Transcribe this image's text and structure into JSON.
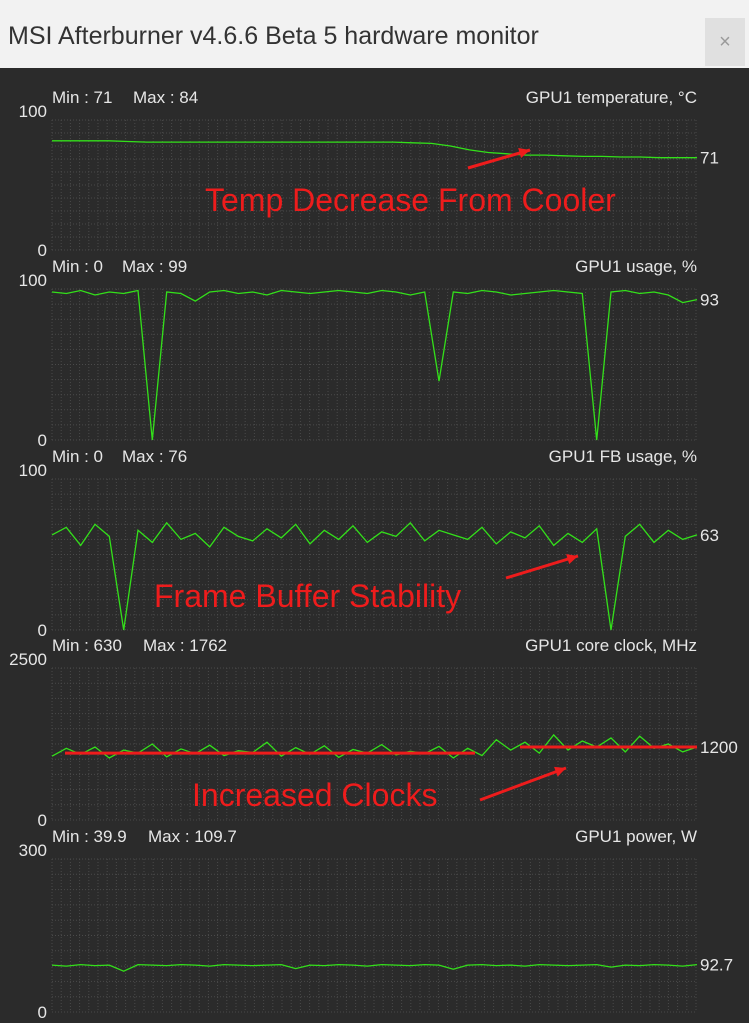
{
  "window": {
    "title": "MSI Afterburner v4.6.6 Beta 5 hardware monitor",
    "close_glyph": "×"
  },
  "colors": {
    "background": "#2b2b2b",
    "grid": "#4a4a4a",
    "trace": "#33e01a",
    "annotation": "#ee1c1c",
    "text": "#e6e6e6"
  },
  "graphs": [
    {
      "id": "temp",
      "title": "GPU1 temperature, °C",
      "min_label": "Min : 71",
      "max_label": "Max : 84",
      "y_top": "100",
      "y_bottom": "0",
      "ymax": 100,
      "current": "71",
      "trace": [
        84,
        84,
        84,
        84,
        83.5,
        83,
        83,
        83,
        83,
        83,
        83,
        83,
        83,
        83,
        83,
        83,
        83,
        83,
        83,
        82.5,
        82,
        80,
        77,
        75,
        74,
        73,
        73,
        72.5,
        72,
        72,
        71.5,
        71.5,
        71,
        71,
        71
      ]
    },
    {
      "id": "usage",
      "title": "GPU1 usage, %",
      "min_label": "Min : 0",
      "max_label": "Max : 99",
      "y_top": "100",
      "y_bottom": "0",
      "ymax": 100,
      "current": "93",
      "trace": [
        98,
        97,
        99,
        96,
        98,
        97,
        99,
        0,
        98,
        97,
        92,
        98,
        99,
        97,
        98,
        96,
        99,
        98,
        97,
        98,
        99,
        98,
        97,
        99,
        98,
        96,
        98,
        39,
        98,
        97,
        99,
        98,
        96,
        97,
        98,
        99,
        98,
        97,
        0,
        98,
        99,
        97,
        98,
        96,
        91,
        93
      ]
    },
    {
      "id": "fb",
      "title": "GPU1 FB usage, %",
      "min_label": "Min : 0",
      "max_label": "Max : 76",
      "y_top": "100",
      "y_bottom": "0",
      "ymax": 100,
      "current": "63",
      "trace": [
        63,
        68,
        56,
        70,
        62,
        0,
        66,
        58,
        71,
        60,
        64,
        55,
        68,
        62,
        59,
        67,
        61,
        70,
        57,
        66,
        60,
        69,
        58,
        65,
        62,
        71,
        59,
        66,
        63,
        60,
        68,
        57,
        65,
        61,
        69,
        56,
        64,
        58,
        67,
        0,
        62,
        70,
        58,
        66,
        60,
        63
      ]
    },
    {
      "id": "clock",
      "title": "GPU1 core clock, MHz",
      "min_label": "Min : 630",
      "max_label": "Max : 1762",
      "y_top": "2500",
      "y_bottom": "0",
      "ymax": 2500,
      "current": "1200",
      "trace": [
        1050,
        1180,
        1080,
        1200,
        1020,
        1150,
        1100,
        1250,
        1040,
        1170,
        1090,
        1230,
        1060,
        1140,
        1110,
        1280,
        1050,
        1190,
        1080,
        1220,
        1030,
        1160,
        1100,
        1240,
        1070,
        1130,
        1090,
        1210,
        1020,
        1180,
        1060,
        1320,
        1150,
        1280,
        1100,
        1400,
        1150,
        1300,
        1200,
        1350,
        1120,
        1380,
        1180,
        1250,
        1120,
        1200
      ]
    },
    {
      "id": "power",
      "title": "GPU1 power, W",
      "min_label": "Min : 39.9",
      "max_label": "Max : 109.7",
      "y_top": "300",
      "y_bottom": "0",
      "ymax": 300,
      "current": "92.7",
      "trace": [
        92,
        90,
        93,
        91,
        92,
        80,
        93,
        92,
        91,
        93,
        92,
        90,
        93,
        92,
        91,
        92,
        93,
        85,
        92,
        91,
        93,
        92,
        90,
        93,
        92,
        91,
        93,
        92,
        84,
        92,
        93,
        91,
        92,
        90,
        93,
        92,
        91,
        92,
        93,
        88,
        92,
        91,
        93,
        92,
        90,
        93
      ]
    }
  ],
  "annotations": {
    "temp": "Temp Decrease From Cooler",
    "fb": "Frame Buffer Stability",
    "clock": "Increased Clocks"
  }
}
